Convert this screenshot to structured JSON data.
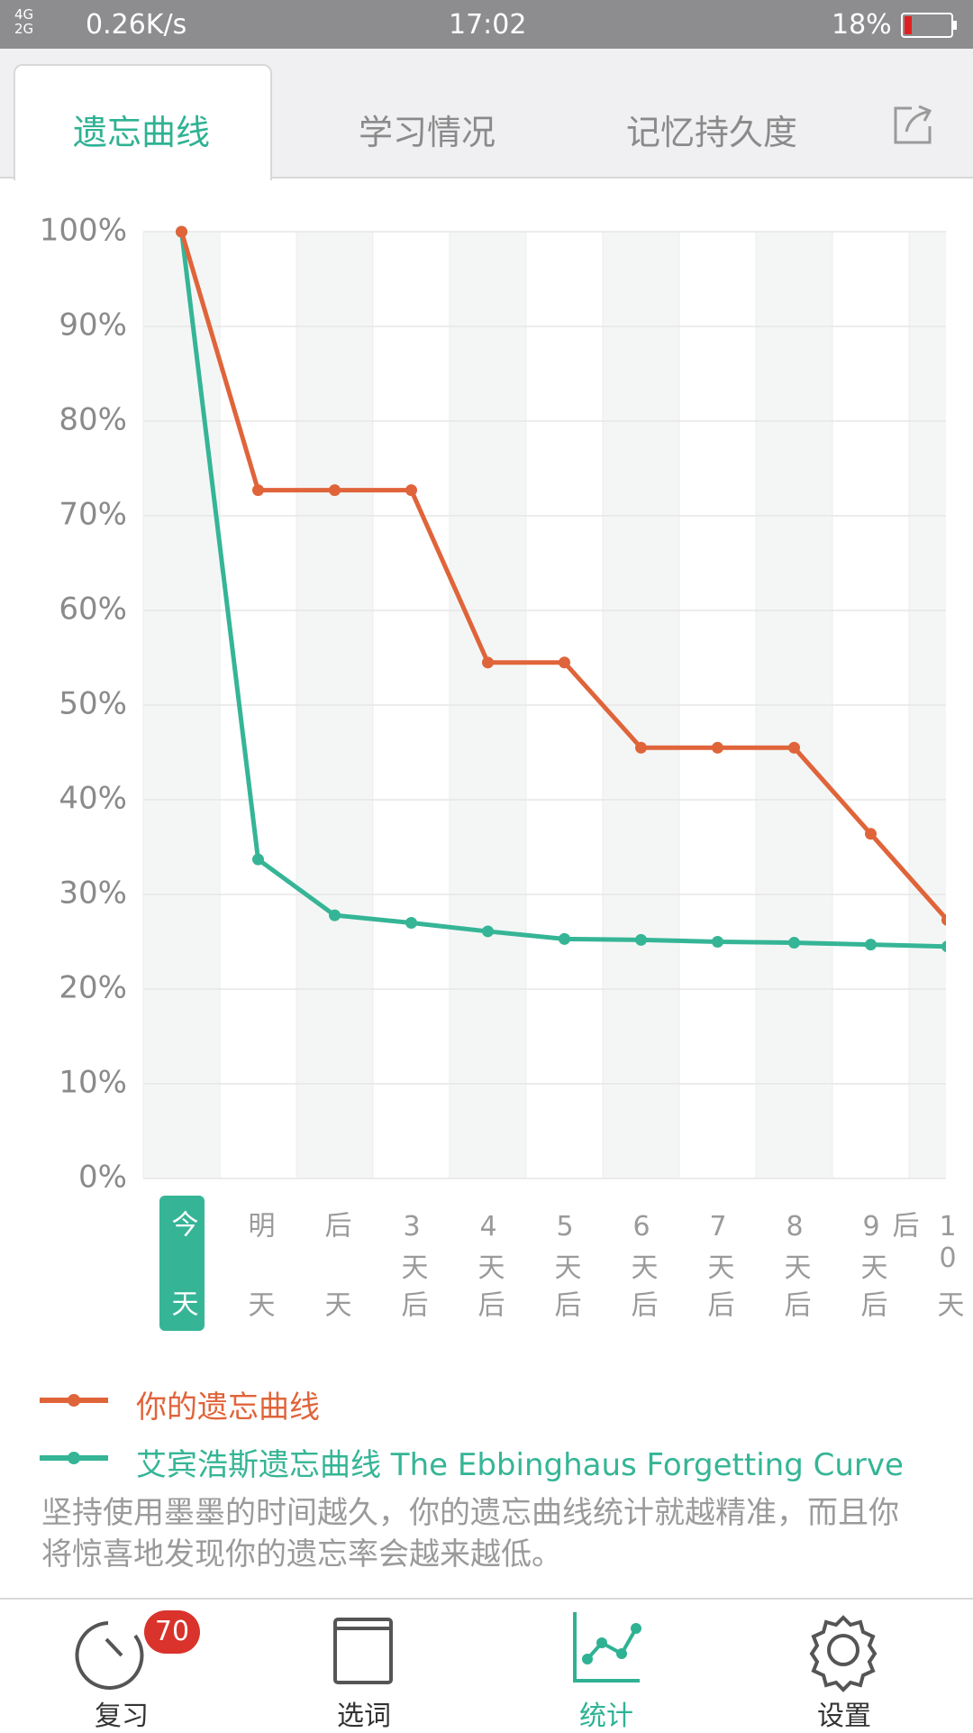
{
  "status": {
    "network": [
      "4G",
      "2G"
    ],
    "speed": "0.26K/s",
    "time": "17:02",
    "battery": "18%"
  },
  "tabs": [
    "遗忘曲线",
    "学习情况",
    "记忆持久度"
  ],
  "chart_data": {
    "type": "line",
    "categories": [
      "今天",
      "明天",
      "后天",
      "3天后",
      "4天后",
      "5天后",
      "6天后",
      "7天后",
      "8天后",
      "9天后",
      "10天后"
    ],
    "series": [
      {
        "name": "你的遗忘曲线",
        "color": "#e0643a",
        "values": [
          100,
          72.7,
          72.7,
          72.7,
          54.5,
          54.5,
          45.5,
          45.5,
          45.5,
          36.4,
          27.3
        ]
      },
      {
        "name": "艾宾浩斯遗忘曲线 The Ebbinghaus Forgetting Curve",
        "color": "#35b596",
        "values": [
          100,
          33.7,
          27.8,
          27.0,
          26.1,
          25.3,
          25.2,
          25.0,
          24.9,
          24.7,
          24.5
        ]
      }
    ],
    "ylim": [
      0,
      100
    ],
    "yticks": [
      {
        "value": 0,
        "label": "0%"
      },
      {
        "value": 10,
        "label": "10%"
      },
      {
        "value": 20,
        "label": "20%"
      },
      {
        "value": 30,
        "label": "30%"
      },
      {
        "value": 40,
        "label": "40%"
      },
      {
        "value": 50,
        "label": "50%"
      },
      {
        "value": 60,
        "label": "60%"
      },
      {
        "value": 70,
        "label": "70%"
      },
      {
        "value": 80,
        "label": "80%"
      },
      {
        "value": 90,
        "label": "90%"
      },
      {
        "value": 100,
        "label": "100%"
      }
    ],
    "grid": true
  },
  "note": "坚持使用墨墨的时间越久，你的遗忘曲线统计就越精准，而且你将惊喜地发现你的遗忘率会越来越低。",
  "nav": [
    {
      "label": "复习",
      "badge": 70
    },
    {
      "label": "选词"
    },
    {
      "label": "统计"
    },
    {
      "label": "设置"
    }
  ]
}
